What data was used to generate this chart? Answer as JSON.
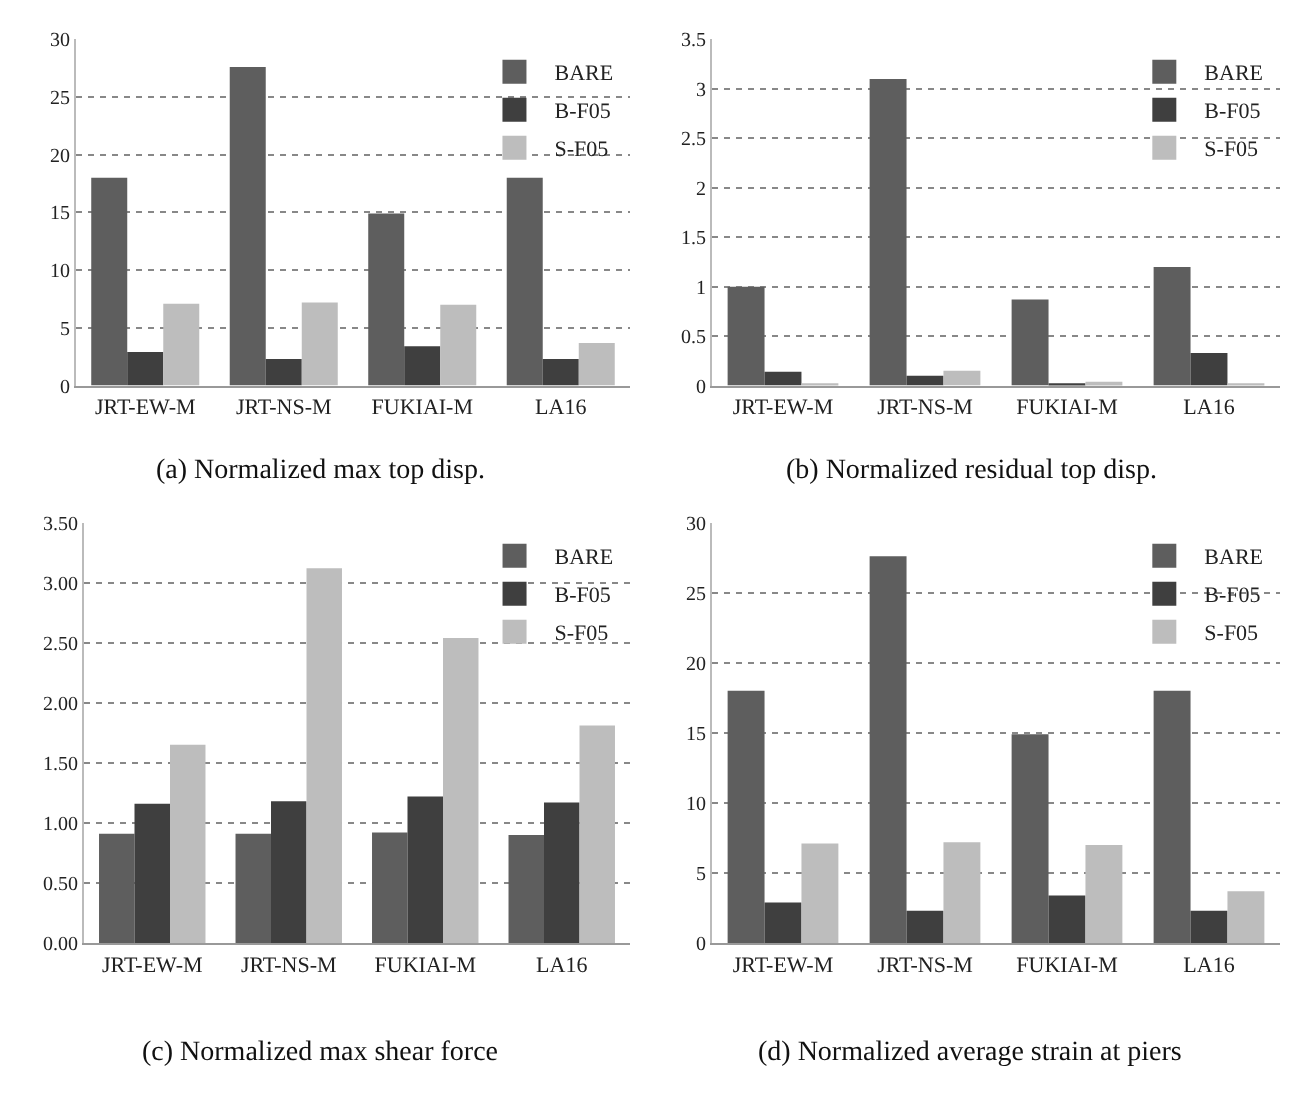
{
  "chart_data": [
    {
      "type": "bar",
      "title": "(a) Normalized max top disp.",
      "categories": [
        "JRT-EW-M",
        "JRT-NS-M",
        "FUKIAI-M",
        "LA16"
      ],
      "series": [
        {
          "name": "BARE",
          "color": "#5e5e5e",
          "values": [
            18,
            27.6,
            14.9,
            18
          ]
        },
        {
          "name": "B-F05",
          "color": "#3f3f3f",
          "values": [
            2.9,
            2.3,
            3.4,
            2.3
          ]
        },
        {
          "name": "S-F05",
          "color": "#bdbdbd",
          "values": [
            7.1,
            7.2,
            7.0,
            3.7
          ]
        }
      ],
      "ylim": [
        0,
        30
      ],
      "yticks": [
        0,
        5,
        10,
        15,
        20,
        25,
        30
      ],
      "grid": "y",
      "legend": "top right"
    },
    {
      "type": "bar",
      "title": "(b) Normalized residual top disp.",
      "categories": [
        "JRT-EW-M",
        "JRT-NS-M",
        "FUKIAI-M",
        "LA16"
      ],
      "series": [
        {
          "name": "BARE",
          "color": "#5e5e5e",
          "values": [
            1.0,
            3.1,
            0.87,
            1.2
          ]
        },
        {
          "name": "B-F05",
          "color": "#3f3f3f",
          "values": [
            0.14,
            0.1,
            0.02,
            0.33
          ]
        },
        {
          "name": "S-F05",
          "color": "#bdbdbd",
          "values": [
            0.02,
            0.15,
            0.04,
            0.01
          ]
        }
      ],
      "ylim": [
        0,
        3.5
      ],
      "yticks": [
        0,
        0.5,
        1,
        1.5,
        2,
        2.5,
        3,
        3.5
      ],
      "grid": "y",
      "legend": "top right"
    },
    {
      "type": "bar",
      "title": "(c) Normalized max shear force",
      "categories": [
        "JRT-EW-M",
        "JRT-NS-M",
        "FUKIAI-M",
        "LA16"
      ],
      "series": [
        {
          "name": "BARE",
          "color": "#5e5e5e",
          "values": [
            0.91,
            0.91,
            0.92,
            0.9
          ]
        },
        {
          "name": "B-F05",
          "color": "#3f3f3f",
          "values": [
            1.16,
            1.18,
            1.22,
            1.17
          ]
        },
        {
          "name": "S-F05",
          "color": "#bdbdbd",
          "values": [
            1.65,
            3.12,
            2.54,
            1.81
          ]
        }
      ],
      "ylim": [
        0,
        3.5
      ],
      "yticks": [
        {
          "value": 0,
          "label": "0.00"
        },
        {
          "value": 0.5,
          "label": "0.50"
        },
        {
          "value": 1,
          "label": "1.00"
        },
        {
          "value": 1.5,
          "label": "1.50"
        },
        {
          "value": 2,
          "label": "2.00"
        },
        {
          "value": 2.5,
          "label": "2.50"
        },
        {
          "value": 3,
          "label": "3.00"
        },
        {
          "value": 3.5,
          "label": "3.50"
        }
      ],
      "grid": "y",
      "legend": "top right"
    },
    {
      "type": "bar",
      "title": "(d) Normalized average strain at piers",
      "categories": [
        "JRT-EW-M",
        "JRT-NS-M",
        "FUKIAI-M",
        "LA16"
      ],
      "series": [
        {
          "name": "BARE",
          "color": "#5e5e5e",
          "values": [
            18,
            27.6,
            14.9,
            18
          ]
        },
        {
          "name": "B-F05",
          "color": "#3f3f3f",
          "values": [
            2.9,
            2.3,
            3.4,
            2.3
          ]
        },
        {
          "name": "S-F05",
          "color": "#bdbdbd",
          "values": [
            7.1,
            7.2,
            7.0,
            3.7
          ]
        }
      ],
      "ylim": [
        0,
        30
      ],
      "yticks": [
        0,
        5,
        10,
        15,
        20,
        25,
        30
      ],
      "grid": "y",
      "legend": "top right"
    }
  ]
}
